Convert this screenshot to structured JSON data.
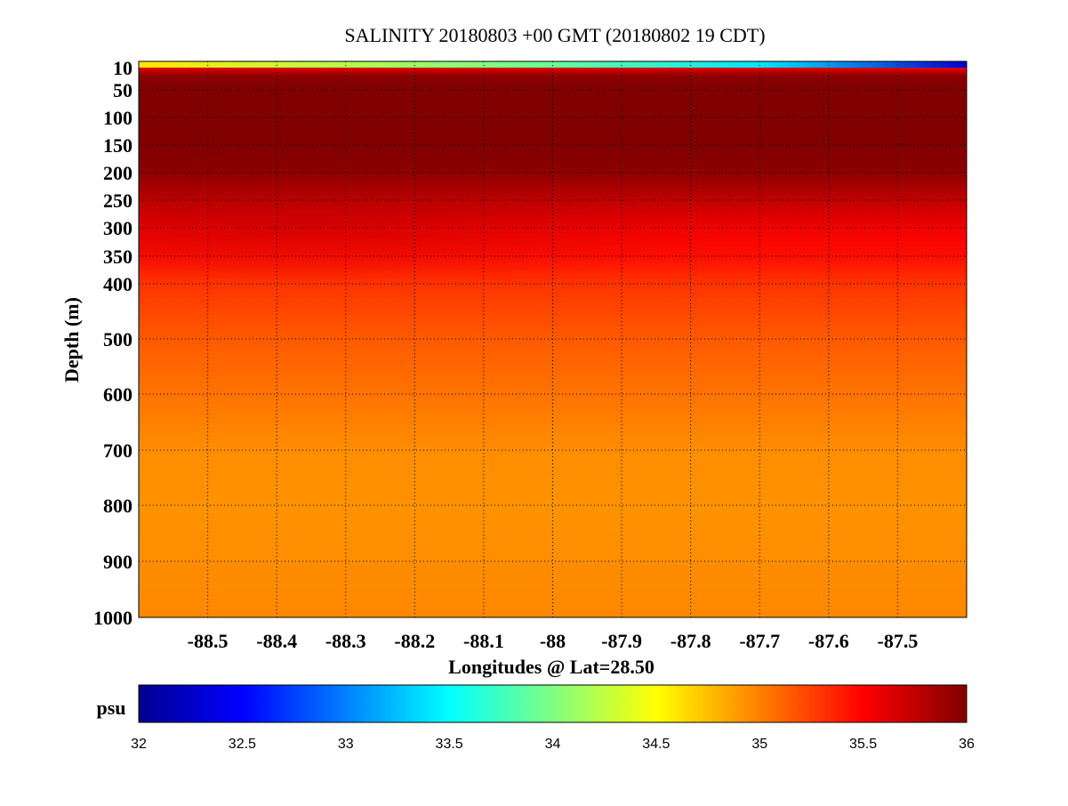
{
  "chart_data": {
    "type": "heatmap",
    "title": "SALINITY 20180803 +00 GMT (20180802 19 CDT)",
    "xlabel": "Longitudes @ Lat=28.50",
    "ylabel": "Depth (m)",
    "x_ticks": [
      -88.5,
      -88.4,
      -88.3,
      -88.2,
      -88.1,
      -88,
      -87.9,
      -87.8,
      -87.7,
      -87.6,
      -87.5
    ],
    "x_tick_labels": [
      "-88.5",
      "-88.4",
      "-88.3",
      "-88.2",
      "-88.1",
      "-88",
      "-87.9",
      "-87.8",
      "-87.7",
      "-87.6",
      "-87.5"
    ],
    "xlim": [
      -88.6,
      -87.4
    ],
    "y_ticks": [
      10,
      50,
      100,
      150,
      200,
      250,
      300,
      350,
      400,
      500,
      600,
      700,
      800,
      900,
      1000
    ],
    "y_tick_labels": [
      "10",
      "50",
      "100",
      "150",
      "200",
      "250",
      "300",
      "350",
      "400",
      "500",
      "600",
      "700",
      "800",
      "900",
      "1000"
    ],
    "y_scale": "stretched depth (0-400 m expanded, 400-1000 m linear)",
    "ylim": [
      0,
      1000
    ],
    "grid": true,
    "colorbar": {
      "label": "psu",
      "range": [
        32,
        36
      ],
      "ticks": [
        32,
        32.5,
        33,
        33.5,
        34,
        34.5,
        35,
        35.5,
        36
      ],
      "tick_labels": [
        "32",
        "32.5",
        "33",
        "33.5",
        "34",
        "34.5",
        "35",
        "35.5",
        "36"
      ],
      "colormap": "jet",
      "stops": [
        "#00008f",
        "#0000ff",
        "#0080ff",
        "#00ffff",
        "#80ff80",
        "#ffff00",
        "#ff8000",
        "#ff0000",
        "#800000"
      ]
    },
    "salinity_profile": [
      {
        "depth": 0,
        "value": 34.6
      },
      {
        "depth": 10,
        "value": 35.6
      },
      {
        "depth": 25,
        "value": 35.95
      },
      {
        "depth": 50,
        "value": 36.0
      },
      {
        "depth": 100,
        "value": 36.0
      },
      {
        "depth": 150,
        "value": 36.0
      },
      {
        "depth": 200,
        "value": 35.95
      },
      {
        "depth": 250,
        "value": 35.75
      },
      {
        "depth": 300,
        "value": 35.55
      },
      {
        "depth": 350,
        "value": 35.45
      },
      {
        "depth": 400,
        "value": 35.3
      },
      {
        "depth": 500,
        "value": 35.15
      },
      {
        "depth": 600,
        "value": 35.05
      },
      {
        "depth": 700,
        "value": 34.95
      },
      {
        "depth": 800,
        "value": 34.93
      },
      {
        "depth": 900,
        "value": 34.95
      },
      {
        "depth": 1000,
        "value": 34.97
      }
    ],
    "surface_values_by_longitude": [
      {
        "lon": -88.6,
        "value": 34.6
      },
      {
        "lon": -88.3,
        "value": 34.2
      },
      {
        "lon": -88.0,
        "value": 33.9
      },
      {
        "lon": -87.7,
        "value": 33.4
      },
      {
        "lon": -87.4,
        "value": 32.3
      }
    ]
  }
}
